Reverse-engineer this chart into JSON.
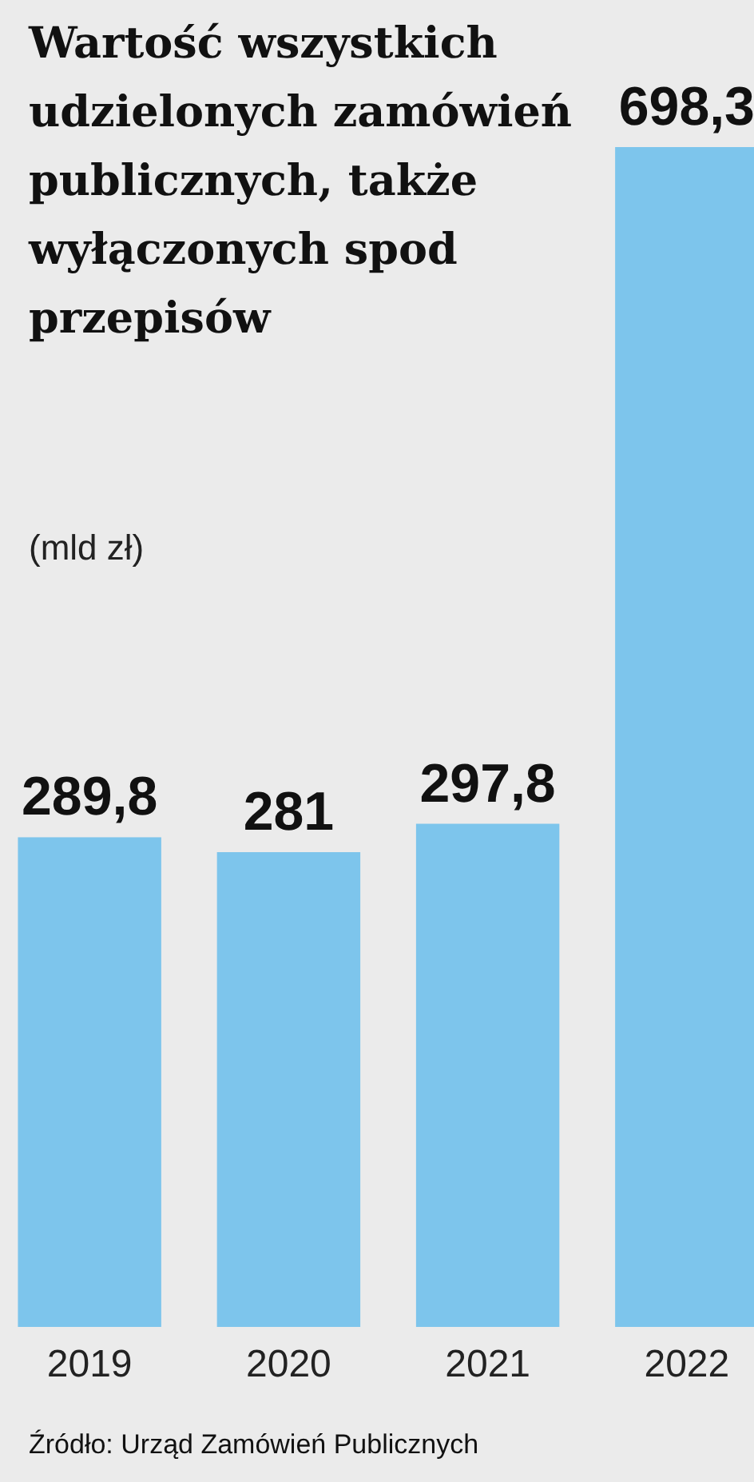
{
  "chart_data": {
    "type": "bar",
    "title": "Wartość wszystkich udzielonych zamówień publicznych, także wyłączonych spod przepisów",
    "subtitle": "(mld zł)",
    "categories": [
      "2019",
      "2020",
      "2021",
      "2022"
    ],
    "values": [
      289.8,
      281,
      297.8,
      698.3
    ],
    "value_labels": [
      "289,8",
      "281",
      "297,8",
      "698,3"
    ],
    "color": "#7dc5ec",
    "annotations": [
      "Źródło: Urząd Zamówień Publicznych"
    ]
  }
}
